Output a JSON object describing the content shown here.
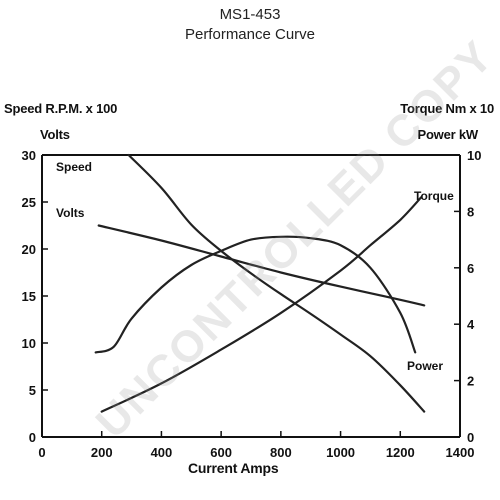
{
  "header": {
    "model": "MS1-453",
    "subtitle": "Performance Curve"
  },
  "axes": {
    "left_label_1": "Speed R.P.M. x 100",
    "left_label_2": "Volts",
    "right_label_1": "Torque Nm x 10",
    "right_label_2": "Power kW",
    "x_label": "Current Amps"
  },
  "watermark": "UNCONTROLLED COPY",
  "chart_data": {
    "type": "line",
    "title": "MS1-453 Performance Curve",
    "xlabel": "Current Amps",
    "ylabel_left": "Speed R.P.M. x 100 / Volts",
    "ylabel_right": "Torque Nm x 10 / Power kW",
    "xlim": [
      0,
      1400
    ],
    "ylim_left": [
      0,
      30
    ],
    "ylim_right": [
      0,
      10
    ],
    "x_ticks": [
      "0",
      "200",
      "400",
      "600",
      "800",
      "1000",
      "1200",
      "1400"
    ],
    "y_left_ticks": [
      "0",
      "5",
      "10",
      "15",
      "20",
      "25",
      "30"
    ],
    "y_right_ticks": [
      "0",
      "2",
      "4",
      "6",
      "8",
      "10"
    ],
    "grid": false,
    "series": [
      {
        "name": "Speed",
        "axis": "left",
        "x": [
          290,
          400,
          500,
          600,
          700,
          800,
          900,
          1000,
          1100,
          1200,
          1280
        ],
        "y": [
          30,
          26.5,
          22.6,
          19.8,
          17.4,
          15.2,
          13.1,
          10.9,
          8.6,
          5.5,
          2.7
        ]
      },
      {
        "name": "Volts",
        "axis": "left",
        "x": [
          190,
          400,
          600,
          800,
          1000,
          1200,
          1280
        ],
        "y": [
          22.5,
          20.9,
          19.2,
          17.5,
          16.0,
          14.6,
          14.0
        ]
      },
      {
        "name": "Torque",
        "axis": "right",
        "x": [
          200,
          400,
          600,
          800,
          1000,
          1100,
          1200,
          1270
        ],
        "y": [
          0.9,
          1.9,
          3.1,
          4.4,
          5.9,
          6.8,
          7.7,
          8.5
        ]
      },
      {
        "name": "Power",
        "axis": "right",
        "x": [
          180,
          240,
          300,
          400,
          500,
          600,
          700,
          800,
          900,
          1000,
          1100,
          1200,
          1250
        ],
        "y": [
          3.0,
          3.2,
          4.2,
          5.3,
          6.1,
          6.6,
          7.0,
          7.1,
          7.05,
          6.8,
          6.0,
          4.4,
          3.0
        ]
      }
    ]
  }
}
